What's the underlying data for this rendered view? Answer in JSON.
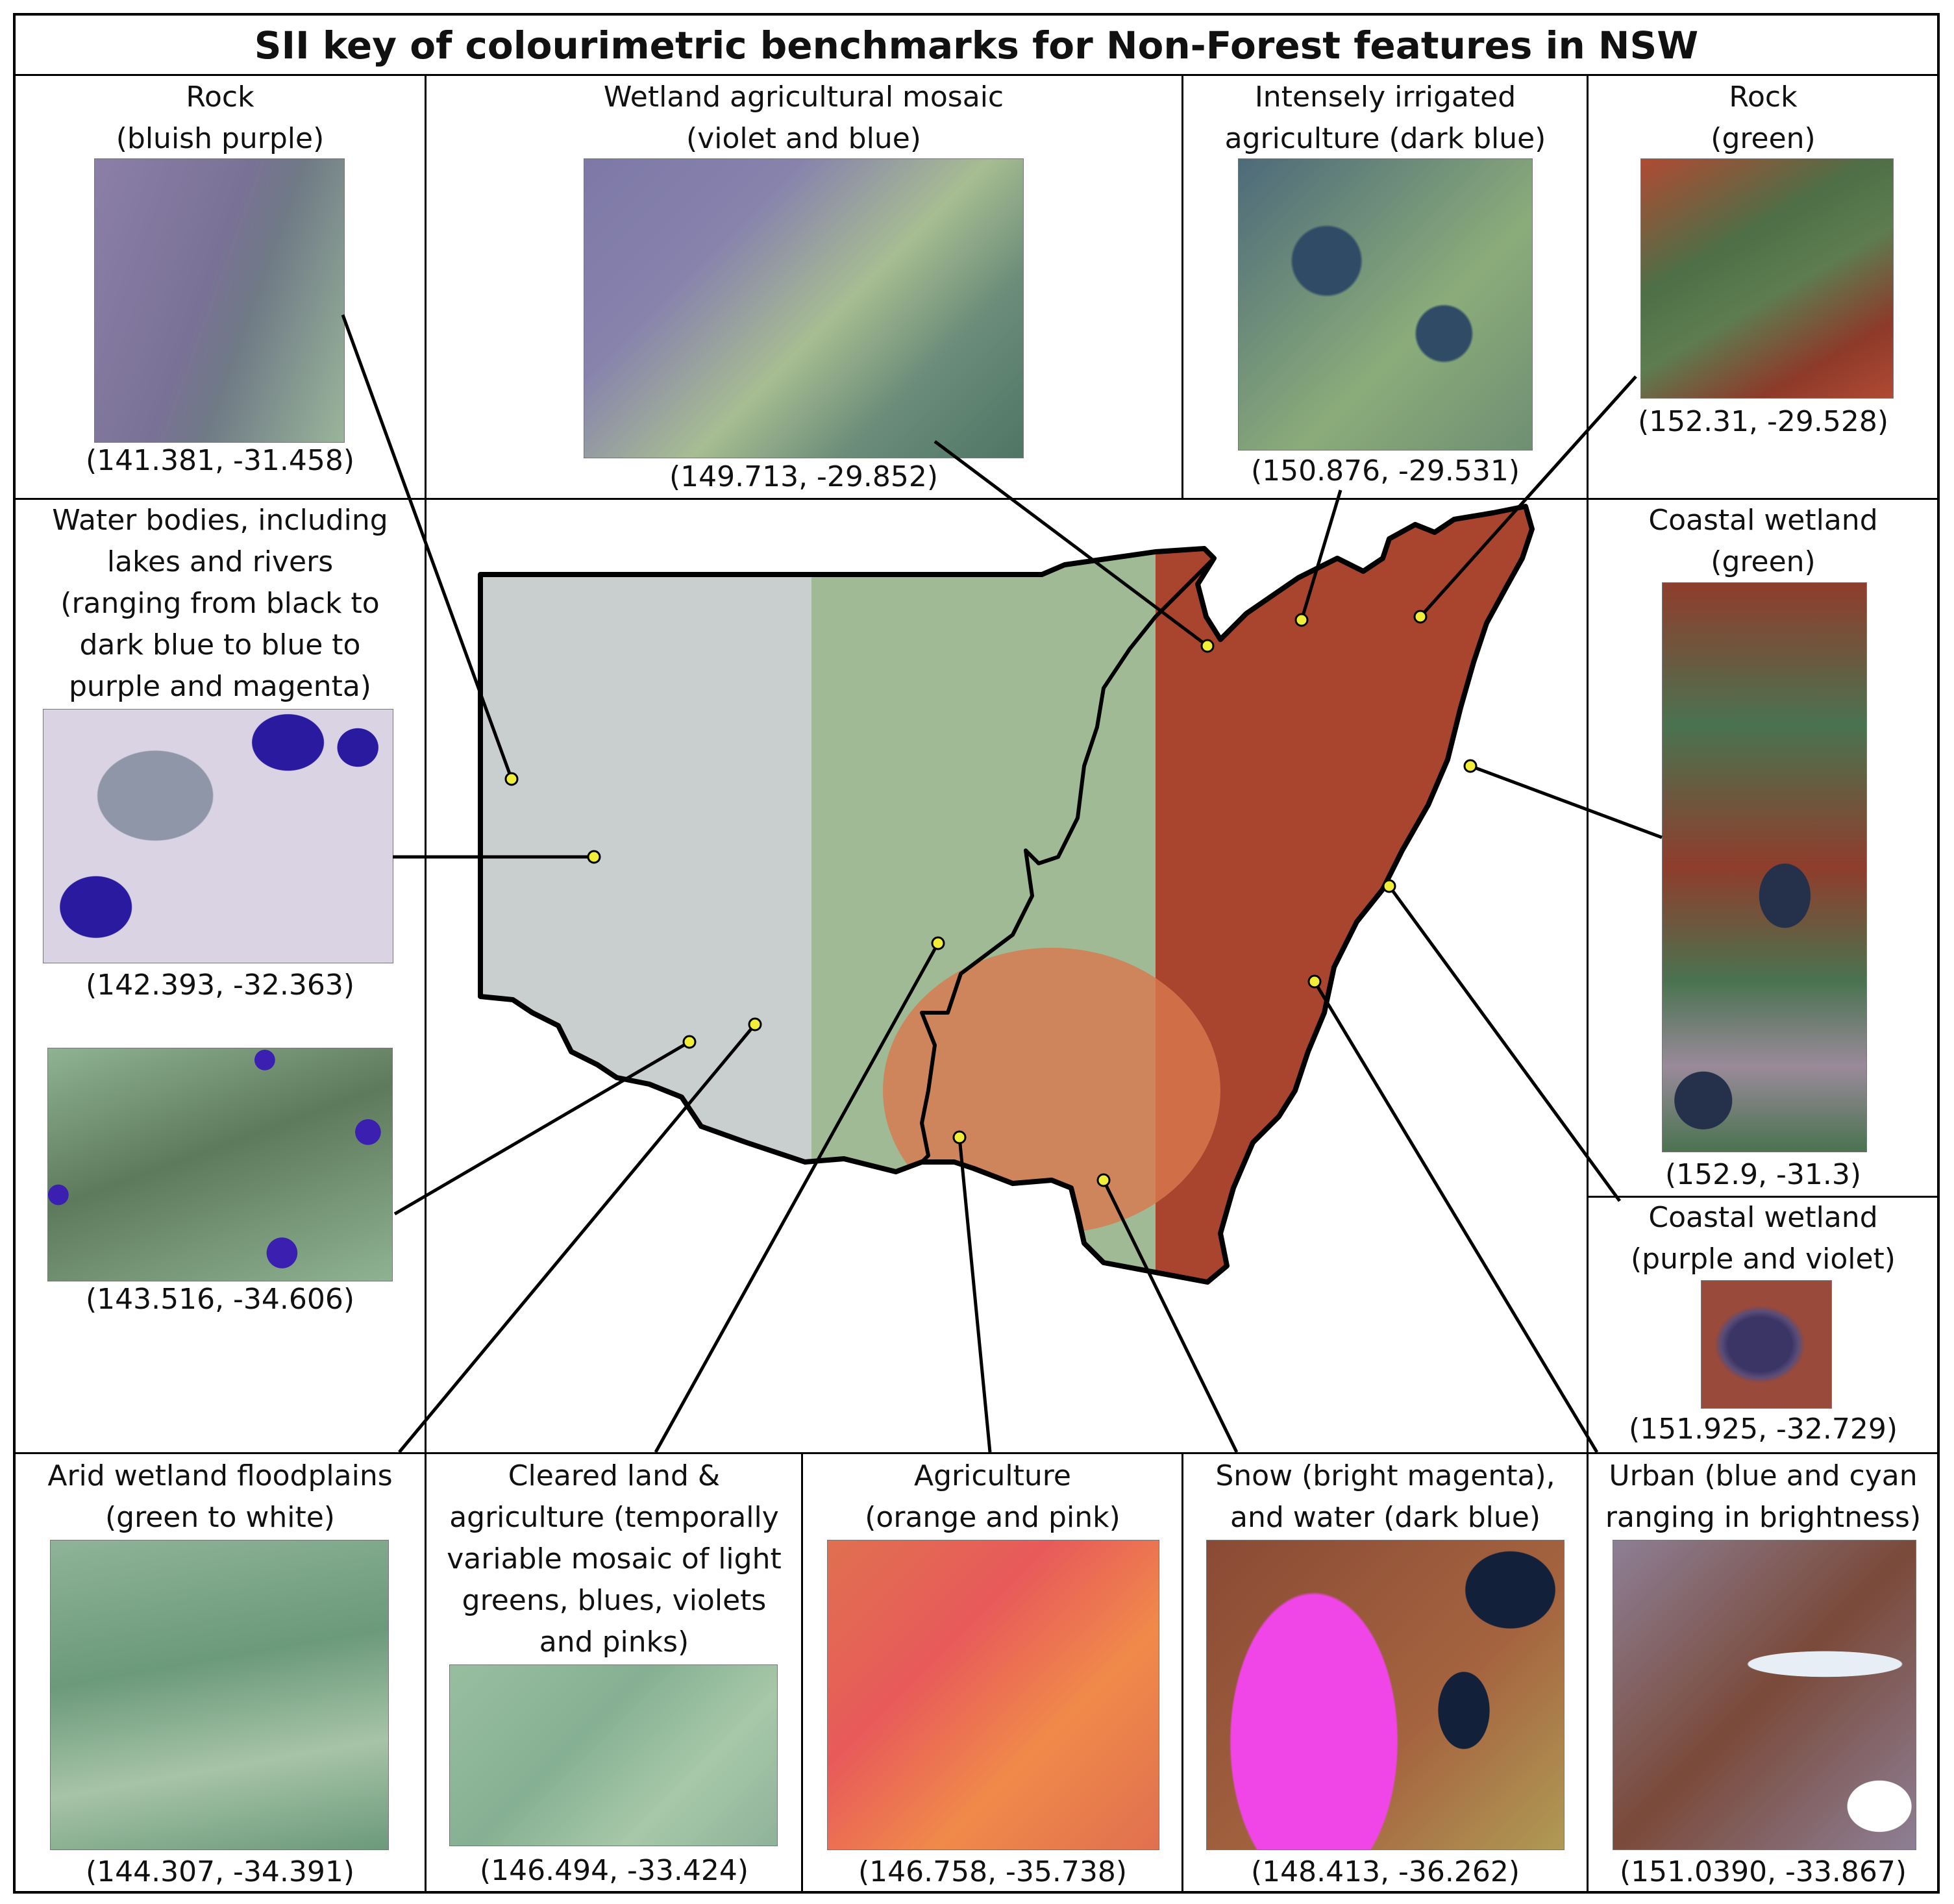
{
  "title": "SII key of colourimetric benchmarks for Non-Forest features in NSW",
  "panels": {
    "rock_purple": {
      "label": [
        "Rock",
        "(bluish purple)"
      ],
      "coord": "(141.381, -31.458)",
      "colors": [
        "#8b7fa8",
        "#6f7a86",
        "#9ab59a"
      ]
    },
    "wetland_mosaic": {
      "label": [
        "Wetland agricultural mosaic",
        "(violet and blue)"
      ],
      "coord": "(149.713, -29.852)",
      "colors": [
        "#7d78a6",
        "#6c8d7a",
        "#a7bd92"
      ]
    },
    "irrigated": {
      "label": [
        "Intensely irrigated",
        "agriculture (dark blue)"
      ],
      "coord": "(150.876, -29.531)",
      "colors": [
        "#4d6a7a",
        "#8bac7a",
        "#2f4b66"
      ]
    },
    "rock_green": {
      "label": [
        "Rock",
        "(green)"
      ],
      "coord": "(152.31,  -29.528)",
      "colors": [
        "#8d3a2a",
        "#4e6f47",
        "#b04a33"
      ]
    },
    "water_bodies": {
      "label": [
        "Water bodies, including",
        "lakes and rivers",
        "(ranging from black to",
        "dark blue to blue to",
        "purple and magenta)"
      ],
      "coord": "(142.393, -32.363)",
      "colors": [
        "#d9d3e4",
        "#2a1aa0",
        "#8e96a8"
      ]
    },
    "water_bodies_2": {
      "coord": "(143.516, -34.606)",
      "colors": [
        "#8fb392",
        "#5e7a5c",
        "#3a1fb0"
      ]
    },
    "coastal_green": {
      "label": [
        "Coastal wetland",
        "(green)"
      ],
      "coord": "(152.9, -31.3)",
      "colors": [
        "#8f3d2c",
        "#4a7350",
        "#25304a"
      ]
    },
    "coastal_purple": {
      "label": [
        "Coastal wetland",
        "(purple and violet)"
      ],
      "coord": "(151.925, -32.729)",
      "colors": [
        "#9a4a3a",
        "#3b3566",
        "#5a4c78"
      ]
    },
    "arid": {
      "label": [
        "Arid wetland floodplains",
        "(green to white)"
      ],
      "coord": "(144.307, -34.391)",
      "colors": [
        "#8fb398",
        "#6b9a7a",
        "#a7c3a8"
      ]
    },
    "cleared": {
      "label": [
        "Cleared land &",
        "agriculture (temporally",
        "variable mosaic of light",
        "greens, blues, violets",
        "and pinks)"
      ],
      "coord": "(146.494, -33.424)",
      "colors": [
        "#98bea0",
        "#86b093",
        "#a7c8a9"
      ]
    },
    "agriculture": {
      "label": [
        "Agriculture",
        "(orange and pink)"
      ],
      "coord": "(146.758, -35.738)",
      "colors": [
        "#e0704f",
        "#e85a5a",
        "#f08a4a"
      ]
    },
    "snow": {
      "label": [
        "Snow (bright magenta),",
        "and water (dark blue)"
      ],
      "coord": "(148.413, -36.262)",
      "colors": [
        "#8a4a35",
        "#f046e8",
        "#12203a"
      ]
    },
    "urban": {
      "label": [
        "Urban (blue and cyan",
        "ranging in brightness)"
      ],
      "coord": "(151.0390, -33.867)",
      "colors": [
        "#8d7f95",
        "#7a4a3a",
        "#ffffff"
      ]
    }
  },
  "map": {
    "colors": {
      "fill_west": "#c9cfcf",
      "fill_central": "#9fba94",
      "fill_east": "#a9452f",
      "fill_orange": "#d9784e",
      "dot": "#f1ee3a",
      "outline": "#000000"
    }
  }
}
